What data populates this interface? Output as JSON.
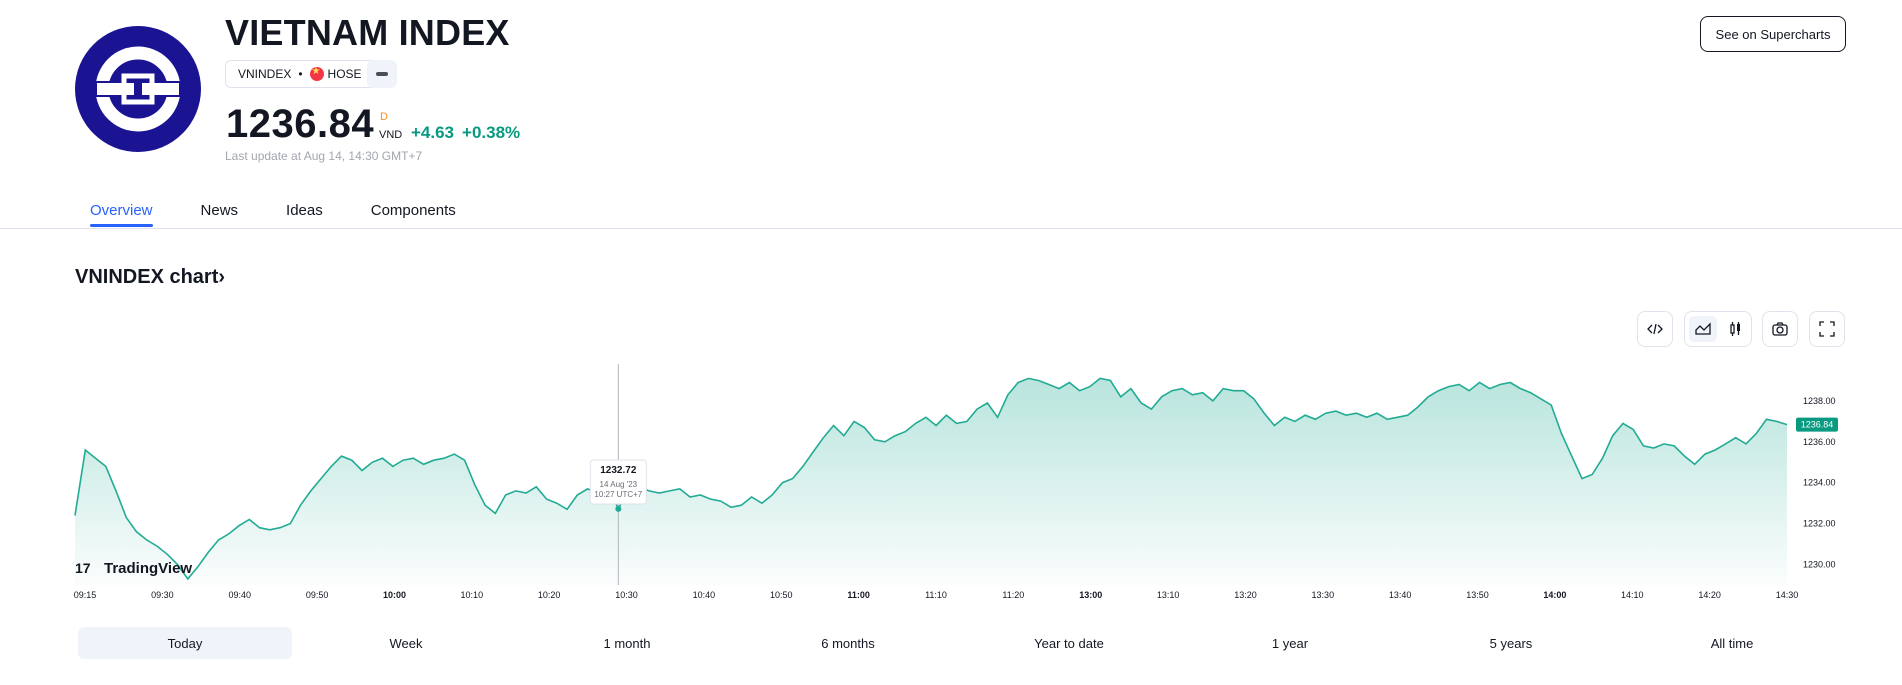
{
  "header": {
    "title": "VIETNAM INDEX",
    "symbol": "VNINDEX",
    "exchange": "HOSE",
    "price": "1236.84",
    "price_suffix": "D",
    "currency": "VND",
    "change_abs": "+4.63",
    "change_pct": "+0.38%",
    "last_update": "Last update at Aug 14, 14:30 GMT+7",
    "supercharts_button": "See on Supercharts",
    "logo_icon": "vnindex-logo-icon",
    "more_icon": "more-icon"
  },
  "tabs": [
    {
      "label": "Overview",
      "active": true
    },
    {
      "label": "News",
      "active": false
    },
    {
      "label": "Ideas",
      "active": false
    },
    {
      "label": "Components",
      "active": false
    }
  ],
  "chart_section": {
    "title": "VNINDEX chart",
    "title_arrow": "›",
    "tool_icons": [
      "embed-code-icon",
      "area-chart-icon",
      "candles-icon",
      "camera-icon",
      "fullscreen-icon"
    ],
    "watermark": "TradingView"
  },
  "chart_data": {
    "type": "area",
    "series": [
      {
        "values": [
          1232.4,
          1235.6,
          1235.2,
          1234.8,
          1233.6,
          1232.3,
          1231.6,
          1231.2,
          1230.9,
          1230.5,
          1230.0,
          1229.3,
          1229.9,
          1230.6,
          1231.2,
          1231.5,
          1231.9,
          1232.2,
          1231.8,
          1231.7,
          1231.8,
          1232.0,
          1232.9,
          1233.6,
          1234.2,
          1234.8,
          1235.3,
          1235.1,
          1234.6,
          1235.0,
          1235.2,
          1234.8,
          1235.1,
          1235.2,
          1234.9,
          1235.1,
          1235.2,
          1235.4,
          1235.1,
          1233.9,
          1232.9,
          1232.5,
          1233.4,
          1233.6,
          1233.5,
          1233.8,
          1233.2,
          1233.0,
          1232.7,
          1233.4,
          1233.7,
          1233.5,
          1233.9,
          1232.72,
          1233.7,
          1233.8,
          1233.6,
          1233.5,
          1233.6,
          1233.7,
          1233.3,
          1233.4,
          1233.2,
          1233.1,
          1232.8,
          1232.9,
          1233.3,
          1233.0,
          1233.4,
          1234.0,
          1234.2,
          1234.8,
          1235.5,
          1236.2,
          1236.8,
          1236.3,
          1237.0,
          1236.7,
          1236.1,
          1236.0,
          1236.3,
          1236.5,
          1236.9,
          1237.2,
          1236.8,
          1237.3,
          1236.9,
          1237.0,
          1237.6,
          1237.9,
          1237.2,
          1238.3,
          1238.9,
          1239.1,
          1239.0,
          1238.8,
          1238.6,
          1238.9,
          1238.5,
          1238.7,
          1239.1,
          1239.0,
          1238.2,
          1238.6,
          1237.9,
          1237.6,
          1238.2,
          1238.5,
          1238.6,
          1238.3,
          1238.4,
          1238.0,
          1238.6,
          1238.5,
          1238.5,
          1238.1,
          1237.4,
          1236.8,
          1237.2,
          1237.0,
          1237.3,
          1237.1,
          1237.4,
          1237.5,
          1237.3,
          1237.4,
          1237.2,
          1237.4,
          1237.1,
          1237.2,
          1237.3,
          1237.7,
          1238.2,
          1238.5,
          1238.7,
          1238.8,
          1238.5,
          1238.9,
          1238.6,
          1238.8,
          1238.9,
          1238.6,
          1238.4,
          1238.1,
          1237.8,
          1236.4,
          1235.3,
          1234.2,
          1234.4,
          1235.2,
          1236.3,
          1236.9,
          1236.6,
          1235.8,
          1235.7,
          1235.9,
          1235.8,
          1235.3,
          1234.9,
          1235.4,
          1235.6,
          1235.9,
          1236.2,
          1235.9,
          1236.4,
          1237.1,
          1237.0,
          1236.84
        ]
      }
    ],
    "x_ticks": [
      {
        "label": "09:15",
        "bold": false
      },
      {
        "label": "09:30",
        "bold": false
      },
      {
        "label": "09:40",
        "bold": false
      },
      {
        "label": "09:50",
        "bold": false
      },
      {
        "label": "10:00",
        "bold": true
      },
      {
        "label": "10:10",
        "bold": false
      },
      {
        "label": "10:20",
        "bold": false
      },
      {
        "label": "10:30",
        "bold": false
      },
      {
        "label": "10:40",
        "bold": false
      },
      {
        "label": "10:50",
        "bold": false
      },
      {
        "label": "11:00",
        "bold": true
      },
      {
        "label": "11:10",
        "bold": false
      },
      {
        "label": "11:20",
        "bold": false
      },
      {
        "label": "13:00",
        "bold": true
      },
      {
        "label": "13:10",
        "bold": false
      },
      {
        "label": "13:20",
        "bold": false
      },
      {
        "label": "13:30",
        "bold": false
      },
      {
        "label": "13:40",
        "bold": false
      },
      {
        "label": "13:50",
        "bold": false
      },
      {
        "label": "14:00",
        "bold": true
      },
      {
        "label": "14:10",
        "bold": false
      },
      {
        "label": "14:20",
        "bold": false
      },
      {
        "label": "14:30",
        "bold": false
      }
    ],
    "y_ticks": [
      "1238.00",
      "1236.00",
      "1234.00",
      "1232.00",
      "1230.00"
    ],
    "ylim": [
      1229.0,
      1240.0
    ],
    "last_label": "1236.84",
    "tooltip": {
      "value": "1232.72",
      "date": "14 Aug '23",
      "time": "10:27 UTC+7",
      "index": 53
    },
    "grid": false,
    "line_color": "#22ab94",
    "fill_color": "#22ab94",
    "last_label_color": "#089981"
  },
  "ranges": [
    {
      "label": "Today",
      "active": true
    },
    {
      "label": "Week",
      "active": false
    },
    {
      "label": "1 month",
      "active": false
    },
    {
      "label": "6 months",
      "active": false
    },
    {
      "label": "Year to date",
      "active": false
    },
    {
      "label": "1 year",
      "active": false
    },
    {
      "label": "5 years",
      "active": false
    },
    {
      "label": "All time",
      "active": false
    }
  ]
}
